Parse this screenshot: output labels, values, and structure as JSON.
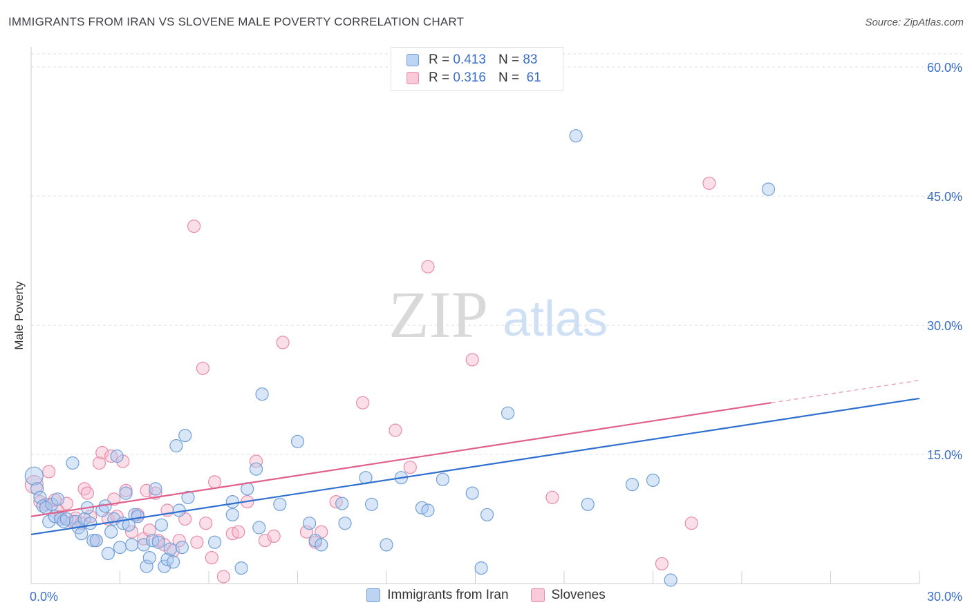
{
  "header": {
    "title": "IMMIGRANTS FROM IRAN VS SLOVENE MALE POVERTY CORRELATION CHART",
    "source": "Source: ZipAtlas.com"
  },
  "legend_top": {
    "rows": [
      {
        "r_label": "R =",
        "r_value": "0.413",
        "n_label": "N =",
        "n_value": "83"
      },
      {
        "r_label": "R =",
        "r_value": "0.316",
        "n_label": "N =",
        "n_value": "61"
      }
    ]
  },
  "watermark": {
    "zip": "ZIP",
    "atlas": "atlas"
  },
  "colors": {
    "iran_fill": "#a9c8ef",
    "iran_stroke": "#6f9fd8",
    "iran_line": "#2f6fcf",
    "slovene_fill": "#f6b9cc",
    "slovene_stroke": "#e98aa8",
    "slovene_line": "#e0608c",
    "tick_label": "#3a6fc4"
  },
  "chart_data": {
    "type": "scatter",
    "ylabel": "Male Poverty",
    "xlim": [
      0,
      30
    ],
    "ylim": [
      0,
      60
    ],
    "x_tick_labels": [
      "0.0%",
      "30.0%"
    ],
    "y_ticks": [
      15,
      30,
      45,
      60
    ],
    "y_tick_labels": [
      "15.0%",
      "30.0%",
      "45.0%",
      "60.0%"
    ],
    "grid": "horizontal dashed",
    "legend": "bottom-center",
    "series": [
      {
        "name": "Immigrants from Iran",
        "R": 0.413,
        "N": 83,
        "trend": {
          "x": [
            0,
            30
          ],
          "y": [
            5.7,
            21.5
          ]
        },
        "points": [
          [
            0.1,
            12.5
          ],
          [
            0.2,
            11.0
          ],
          [
            0.3,
            10.0
          ],
          [
            0.4,
            9.0
          ],
          [
            0.5,
            8.8
          ],
          [
            0.6,
            7.2
          ],
          [
            0.7,
            9.2
          ],
          [
            0.8,
            7.8
          ],
          [
            0.9,
            9.8
          ],
          [
            1.0,
            7.5
          ],
          [
            1.1,
            7.2
          ],
          [
            1.2,
            7.5
          ],
          [
            1.4,
            14.0
          ],
          [
            1.5,
            7.2
          ],
          [
            1.6,
            6.5
          ],
          [
            1.7,
            5.8
          ],
          [
            1.8,
            7.5
          ],
          [
            1.9,
            8.8
          ],
          [
            2.0,
            7.0
          ],
          [
            2.1,
            5.0
          ],
          [
            2.2,
            5.0
          ],
          [
            2.4,
            8.5
          ],
          [
            2.5,
            9.0
          ],
          [
            2.6,
            3.5
          ],
          [
            2.7,
            6.0
          ],
          [
            2.8,
            7.5
          ],
          [
            2.9,
            14.8
          ],
          [
            3.0,
            4.2
          ],
          [
            3.1,
            7.0
          ],
          [
            3.2,
            10.5
          ],
          [
            3.3,
            6.8
          ],
          [
            3.4,
            4.5
          ],
          [
            3.5,
            8.0
          ],
          [
            3.6,
            7.8
          ],
          [
            3.8,
            4.5
          ],
          [
            3.9,
            2.0
          ],
          [
            4.0,
            3.0
          ],
          [
            4.1,
            5.0
          ],
          [
            4.2,
            11.0
          ],
          [
            4.3,
            4.8
          ],
          [
            4.4,
            6.8
          ],
          [
            4.5,
            2.0
          ],
          [
            4.6,
            2.8
          ],
          [
            4.7,
            4.0
          ],
          [
            4.8,
            2.5
          ],
          [
            4.9,
            16.0
          ],
          [
            5.0,
            8.5
          ],
          [
            5.1,
            4.2
          ],
          [
            5.2,
            17.2
          ],
          [
            5.3,
            10.0
          ],
          [
            6.2,
            4.8
          ],
          [
            6.8,
            9.5
          ],
          [
            6.8,
            8.0
          ],
          [
            7.1,
            1.8
          ],
          [
            7.3,
            11.0
          ],
          [
            7.6,
            13.3
          ],
          [
            7.7,
            6.5
          ],
          [
            7.8,
            22.0
          ],
          [
            8.4,
            9.2
          ],
          [
            9.0,
            16.5
          ],
          [
            9.4,
            7.0
          ],
          [
            9.6,
            5.0
          ],
          [
            9.8,
            4.5
          ],
          [
            10.5,
            9.3
          ],
          [
            10.6,
            7.0
          ],
          [
            11.3,
            12.3
          ],
          [
            11.5,
            9.2
          ],
          [
            12.0,
            4.5
          ],
          [
            12.5,
            12.3
          ],
          [
            13.2,
            8.8
          ],
          [
            13.4,
            8.5
          ],
          [
            13.9,
            12.1
          ],
          [
            14.9,
            10.5
          ],
          [
            15.2,
            1.8
          ],
          [
            15.4,
            8.0
          ],
          [
            16.1,
            19.8
          ],
          [
            18.4,
            52.0
          ],
          [
            18.8,
            9.2
          ],
          [
            20.3,
            11.5
          ],
          [
            21.0,
            12.0
          ],
          [
            21.6,
            0.4
          ],
          [
            24.9,
            45.8
          ]
        ]
      },
      {
        "name": "Slovenes",
        "R": 0.316,
        "N": 61,
        "trend": {
          "x": [
            0,
            25
          ],
          "y": [
            7.8,
            21.0
          ]
        },
        "trend_dashed": {
          "x": [
            25,
            30
          ],
          "y": [
            21.0,
            23.6
          ]
        },
        "points": [
          [
            0.1,
            11.5
          ],
          [
            0.3,
            9.5
          ],
          [
            0.5,
            9.2
          ],
          [
            0.6,
            13.0
          ],
          [
            0.8,
            9.7
          ],
          [
            0.9,
            8.5
          ],
          [
            1.0,
            7.8
          ],
          [
            1.2,
            9.3
          ],
          [
            1.4,
            7.2
          ],
          [
            1.5,
            7.6
          ],
          [
            1.7,
            7.0
          ],
          [
            1.8,
            11.0
          ],
          [
            1.9,
            10.5
          ],
          [
            2.0,
            7.8
          ],
          [
            2.2,
            5.0
          ],
          [
            2.3,
            14.0
          ],
          [
            2.4,
            15.2
          ],
          [
            2.6,
            7.5
          ],
          [
            2.7,
            14.8
          ],
          [
            2.8,
            9.8
          ],
          [
            2.9,
            7.8
          ],
          [
            3.1,
            14.2
          ],
          [
            3.2,
            10.8
          ],
          [
            3.4,
            6.0
          ],
          [
            3.6,
            8.0
          ],
          [
            3.8,
            5.2
          ],
          [
            3.9,
            10.8
          ],
          [
            4.0,
            6.2
          ],
          [
            4.2,
            10.5
          ],
          [
            4.3,
            5.0
          ],
          [
            4.5,
            4.5
          ],
          [
            4.6,
            8.5
          ],
          [
            4.8,
            3.8
          ],
          [
            5.0,
            5.0
          ],
          [
            5.2,
            7.5
          ],
          [
            5.5,
            41.5
          ],
          [
            5.6,
            4.8
          ],
          [
            5.8,
            25.0
          ],
          [
            5.9,
            7.0
          ],
          [
            6.1,
            3.0
          ],
          [
            6.2,
            11.8
          ],
          [
            6.5,
            0.8
          ],
          [
            6.8,
            5.8
          ],
          [
            7.0,
            6.0
          ],
          [
            7.3,
            9.5
          ],
          [
            7.6,
            14.2
          ],
          [
            7.9,
            5.0
          ],
          [
            8.2,
            5.5
          ],
          [
            8.5,
            28.0
          ],
          [
            9.3,
            6.0
          ],
          [
            9.6,
            4.8
          ],
          [
            9.8,
            6.0
          ],
          [
            10.3,
            9.5
          ],
          [
            11.2,
            21.0
          ],
          [
            12.3,
            17.8
          ],
          [
            12.8,
            13.5
          ],
          [
            13.4,
            36.8
          ],
          [
            14.9,
            26.0
          ],
          [
            17.6,
            10.0
          ],
          [
            21.3,
            2.3
          ],
          [
            22.3,
            7.0
          ],
          [
            22.9,
            46.5
          ]
        ]
      }
    ]
  }
}
